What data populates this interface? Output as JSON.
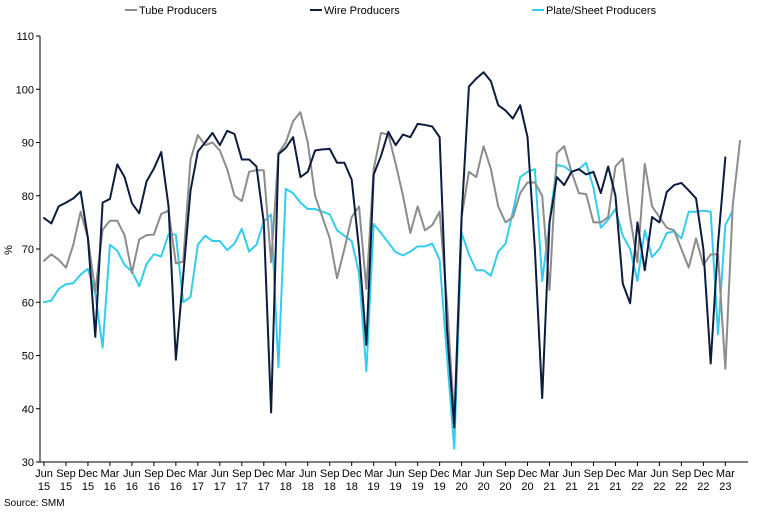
{
  "source": "Source: SMM",
  "chart_data": {
    "type": "line",
    "title": "",
    "xlabel": "",
    "ylabel": "%",
    "ylim": [
      30,
      110
    ],
    "yticks": [
      30,
      40,
      50,
      60,
      70,
      80,
      90,
      100,
      110
    ],
    "grid": false,
    "legend": "top",
    "x_tick_labels": [
      {
        "month": "Jun",
        "year": "15",
        "index": 0
      },
      {
        "month": "Sep",
        "year": "15",
        "index": 3
      },
      {
        "month": "Dec",
        "year": "15",
        "index": 6
      },
      {
        "month": "Mar",
        "year": "16",
        "index": 9
      },
      {
        "month": "Jun",
        "year": "16",
        "index": 12
      },
      {
        "month": "Sep",
        "year": "16",
        "index": 15
      },
      {
        "month": "Dec",
        "year": "16",
        "index": 18
      },
      {
        "month": "Mar",
        "year": "17",
        "index": 21
      },
      {
        "month": "Jun",
        "year": "17",
        "index": 24
      },
      {
        "month": "Sep",
        "year": "17",
        "index": 27
      },
      {
        "month": "Dec",
        "year": "17",
        "index": 30
      },
      {
        "month": "Mar",
        "year": "18",
        "index": 33
      },
      {
        "month": "Jun",
        "year": "18",
        "index": 36
      },
      {
        "month": "Sep",
        "year": "18",
        "index": 39
      },
      {
        "month": "Dec",
        "year": "18",
        "index": 42
      },
      {
        "month": "Mar",
        "year": "19",
        "index": 45
      },
      {
        "month": "Jun",
        "year": "19",
        "index": 48
      },
      {
        "month": "Sep",
        "year": "19",
        "index": 51
      },
      {
        "month": "Dec",
        "year": "19",
        "index": 54
      },
      {
        "month": "Mar",
        "year": "20",
        "index": 57
      },
      {
        "month": "Jun",
        "year": "20",
        "index": 60
      },
      {
        "month": "Sep",
        "year": "20",
        "index": 63
      },
      {
        "month": "Dec",
        "year": "20",
        "index": 66
      },
      {
        "month": "Mar",
        "year": "21",
        "index": 69
      },
      {
        "month": "Jun",
        "year": "21",
        "index": 72
      },
      {
        "month": "Sep",
        "year": "21",
        "index": 75
      },
      {
        "month": "Dec",
        "year": "21",
        "index": 78
      },
      {
        "month": "Mar",
        "year": "22",
        "index": 81
      },
      {
        "month": "Jun",
        "year": "22",
        "index": 84
      },
      {
        "month": "Sep",
        "year": "22",
        "index": 87
      },
      {
        "month": "Dec",
        "year": "22",
        "index": 90
      },
      {
        "month": "Mar",
        "year": "23",
        "index": 93
      }
    ],
    "series": [
      {
        "name": "Tube Producers",
        "color": "#8c8c8c",
        "values": [
          67.8,
          69.0,
          68.0,
          66.5,
          70.8,
          77.0,
          72.0,
          62.0,
          73.6,
          75.3,
          75.3,
          72.6,
          65.5,
          71.8,
          72.6,
          72.7,
          76.6,
          77.2,
          67.3,
          67.6,
          86.8,
          91.4,
          89.5,
          90.0,
          88.5,
          85.0,
          80.0,
          79.0,
          84.5,
          84.8,
          84.8,
          67.5,
          88.0,
          90.0,
          94.0,
          95.7,
          90.0,
          80.0,
          76.0,
          72.0,
          64.5,
          70.0,
          76.0,
          78.0,
          62.5,
          85.0,
          91.8,
          91.5,
          86.0,
          80.0,
          73.0,
          78.0,
          73.5,
          74.5,
          77.0,
          60.0,
          38.0,
          76.0,
          84.5,
          83.5,
          89.3,
          85.0,
          78.0,
          75.0,
          76.0,
          80.5,
          82.5,
          82.5,
          80.0,
          62.3,
          88.0,
          89.3,
          84.5,
          80.5,
          80.3,
          75.0,
          75.0,
          76.0,
          85.5,
          87.0,
          76.0,
          67.5,
          86.0,
          78.0,
          76.0,
          74.0,
          73.5,
          70.0,
          66.5,
          72.0,
          67.0,
          69.0,
          69.0,
          47.5,
          78.0,
          90.3
        ]
      },
      {
        "name": "Wire Producers",
        "color": "#0d1b3e",
        "values": [
          75.8,
          74.8,
          78.0,
          78.7,
          79.5,
          80.8,
          72.0,
          53.5,
          78.7,
          79.4,
          85.9,
          83.5,
          78.6,
          76.7,
          82.7,
          85.1,
          88.2,
          78.0,
          49.2,
          65.0,
          81.0,
          88.3,
          90.0,
          91.8,
          89.5,
          92.2,
          91.6,
          86.8,
          86.8,
          85.5,
          75.0,
          39.3,
          87.8,
          89.0,
          91.0,
          83.5,
          84.5,
          88.5,
          88.7,
          88.8,
          86.2,
          86.2,
          83.0,
          70.0,
          52.0,
          84.0,
          87.5,
          92.0,
          89.5,
          91.5,
          91.0,
          93.5,
          93.3,
          93.0,
          91.0,
          55.0,
          36.5,
          76.0,
          100.5,
          102.0,
          103.2,
          101.5,
          97.0,
          96.0,
          94.5,
          97.0,
          91.0,
          70.0,
          42.0,
          75.0,
          83.5,
          82.0,
          84.5,
          85.0,
          84.0,
          84.5,
          80.5,
          85.5,
          80.0,
          63.5,
          59.8,
          75.0,
          66.0,
          76.0,
          75.0,
          80.7,
          82.0,
          82.4,
          81.0,
          79.5,
          70.0,
          48.5,
          71.0,
          87.2
        ]
      },
      {
        "name": "Plate/Sheet Producers",
        "color": "#33ccee",
        "values": [
          60.0,
          60.3,
          62.5,
          63.4,
          63.6,
          65.2,
          66.3,
          61.5,
          51.5,
          70.8,
          69.7,
          67.0,
          65.8,
          63.0,
          67.2,
          69.0,
          68.6,
          72.8,
          72.7,
          60.0,
          61.0,
          70.8,
          72.5,
          71.5,
          71.5,
          69.8,
          71.0,
          73.8,
          69.5,
          70.8,
          75.2,
          76.5,
          47.8,
          81.3,
          80.5,
          78.7,
          77.5,
          77.5,
          77.0,
          76.5,
          73.5,
          72.5,
          71.5,
          65.5,
          47.0,
          74.7,
          73.0,
          71.2,
          69.4,
          68.8,
          69.5,
          70.5,
          70.5,
          71.0,
          68.0,
          50.0,
          32.5,
          73.0,
          69.0,
          66.0,
          66.0,
          65.0,
          69.5,
          71.0,
          77.0,
          83.5,
          84.5,
          85.0,
          64.0,
          75.0,
          85.8,
          85.5,
          84.5,
          85.0,
          86.2,
          81.5,
          74.0,
          75.5,
          77.5,
          72.5,
          70.0,
          64.0,
          73.5,
          68.5,
          70.0,
          73.0,
          73.3,
          72.0,
          77.0,
          77.0,
          77.2,
          77.0,
          54.0,
          74.5,
          77.2
        ]
      }
    ]
  }
}
